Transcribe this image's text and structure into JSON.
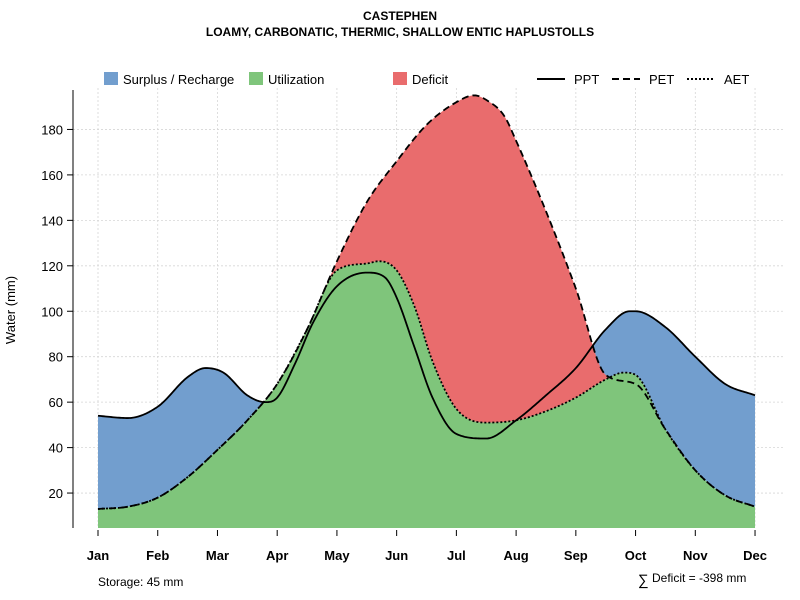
{
  "chart_data": {
    "type": "area",
    "title": "CASTEPHEN",
    "subtitle": "LOAMY, CARBONATIC, THERMIC, SHALLOW ENTIC HAPLUSTOLLS",
    "ylabel": "Water (mm)",
    "xlabel": "",
    "ylim": [
      5,
      197
    ],
    "yticks": [
      20,
      40,
      60,
      80,
      100,
      120,
      140,
      160,
      180
    ],
    "grid": true,
    "categories": [
      "Jan",
      "Feb",
      "Mar",
      "Apr",
      "May",
      "Jun",
      "Jul",
      "Aug",
      "Sep",
      "Oct",
      "Nov",
      "Dec"
    ],
    "series": [
      {
        "name": "PPT",
        "style": "solid",
        "x": [
          1,
          1.5,
          2,
          2.5,
          2.8,
          3.1,
          3.5,
          3.8,
          4,
          4.3,
          4.6,
          5,
          5.5,
          5.8,
          6,
          6.3,
          6.6,
          7,
          7.5,
          8,
          8.5,
          9,
          9.5,
          9.9,
          10,
          10.5,
          11,
          11.5,
          12
        ],
        "values": [
          54,
          53,
          58,
          71,
          75,
          73,
          63,
          60,
          62,
          77,
          95,
          111,
          117,
          115,
          106,
          84,
          62,
          46,
          44,
          52,
          63,
          75,
          92,
          100,
          100,
          93,
          80,
          68,
          63
        ]
      },
      {
        "name": "PET",
        "style": "dashed",
        "x": [
          1,
          1.5,
          2,
          2.5,
          3,
          3.5,
          4,
          4.5,
          5,
          5.5,
          6,
          6.5,
          7,
          7.3,
          7.5,
          7.8,
          8,
          8.5,
          9,
          9.5,
          10,
          10.5,
          11,
          11.5,
          12
        ],
        "values": [
          13,
          14,
          18,
          27,
          39,
          52,
          68,
          92,
          122,
          148,
          166,
          182,
          192,
          195,
          193,
          186,
          175,
          144,
          110,
          72,
          68,
          48,
          30,
          19,
          14
        ]
      },
      {
        "name": "AET",
        "style": "dotted",
        "x": [
          1,
          1.5,
          2,
          2.5,
          3,
          3.5,
          4,
          4.5,
          5,
          5.5,
          5.7,
          6,
          6.3,
          6.6,
          7,
          7.5,
          8,
          8.5,
          9,
          9.5,
          9.8,
          10,
          10.5,
          11,
          11.5,
          12
        ],
        "values": [
          13,
          14,
          18,
          27,
          39,
          52,
          68,
          92,
          118,
          121,
          122,
          118,
          102,
          78,
          57,
          51,
          52,
          56,
          62,
          70,
          73,
          72,
          48,
          30,
          19,
          14
        ]
      }
    ],
    "areas": [
      {
        "name": "Surplus / Recharge",
        "color": "#729ECE",
        "fill": "between PPT and AET where PPT > AET"
      },
      {
        "name": "Utilization",
        "color": "#7FC57B",
        "fill": "under AET"
      },
      {
        "name": "Deficit",
        "color": "#E96C6D",
        "fill": "between PET and AET"
      }
    ],
    "legend": [
      {
        "label": "Surplus / Recharge",
        "kind": "box",
        "color": "#729ECE"
      },
      {
        "label": "Utilization",
        "kind": "box",
        "color": "#7FC57B"
      },
      {
        "label": "Deficit",
        "kind": "box",
        "color": "#E96C6D"
      },
      {
        "label": "PPT",
        "kind": "line",
        "dash": "solid"
      },
      {
        "label": "PET",
        "kind": "line",
        "dash": "dashed"
      },
      {
        "label": "AET",
        "kind": "line",
        "dash": "dotted"
      }
    ],
    "legend_position": "top",
    "annotations": {
      "storage": "Storage: 45 mm",
      "deficit_symbol": "∑",
      "deficit": "Deficit = -398 mm"
    }
  }
}
